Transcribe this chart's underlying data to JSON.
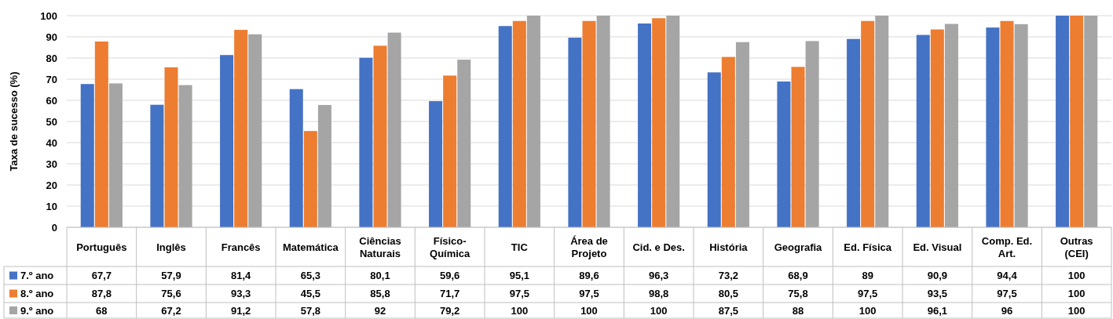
{
  "chart_data": {
    "type": "bar",
    "ylabel": "Taxa de sucesso (%)",
    "categories": [
      "Português",
      "Inglês",
      "Francês",
      "Matemática",
      "Ciências Naturais",
      "Físico-Química",
      "TIC",
      "Área de Projeto",
      "Cid. e Des.",
      "História",
      "Geografia",
      "Ed. Física",
      "Ed. Visual",
      "Comp. Ed. Art.",
      "Outras (CEI)"
    ],
    "series": [
      {
        "name": "7.º ano",
        "color": "#4472c4",
        "values": [
          67.7,
          57.9,
          81.4,
          65.3,
          80.1,
          59.6,
          95.1,
          89.6,
          96.3,
          73.2,
          68.9,
          89,
          90.9,
          94.4,
          100
        ],
        "value_labels": [
          "67,7",
          "57,9",
          "81,4",
          "65,3",
          "80,1",
          "59,6",
          "95,1",
          "89,6",
          "96,3",
          "73,2",
          "68,9",
          "89",
          "90,9",
          "94,4",
          "100"
        ]
      },
      {
        "name": "8.º ano",
        "color": "#ed7d31",
        "values": [
          87.8,
          75.6,
          93.3,
          45.5,
          85.8,
          71.7,
          97.5,
          97.5,
          98.8,
          80.5,
          75.8,
          97.5,
          93.5,
          97.5,
          100
        ],
        "value_labels": [
          "87,8",
          "75,6",
          "93,3",
          "45,5",
          "85,8",
          "71,7",
          "97,5",
          "97,5",
          "98,8",
          "80,5",
          "75,8",
          "97,5",
          "93,5",
          "97,5",
          "100"
        ]
      },
      {
        "name": "9.º ano",
        "color": "#a5a5a5",
        "values": [
          68,
          67.2,
          91.2,
          57.8,
          92,
          79.2,
          100,
          100,
          100,
          87.5,
          88,
          100,
          96.1,
          96,
          100
        ],
        "value_labels": [
          "68",
          "67,2",
          "91,2",
          "57,8",
          "92",
          "79,2",
          "100",
          "100",
          "100",
          "87,5",
          "88",
          "100",
          "96,1",
          "96",
          "100"
        ]
      }
    ],
    "ylim": [
      0,
      100
    ],
    "yticks": [
      0,
      10,
      20,
      30,
      40,
      50,
      60,
      70,
      80,
      90,
      100
    ],
    "grid": "y",
    "legend": "bottom"
  }
}
